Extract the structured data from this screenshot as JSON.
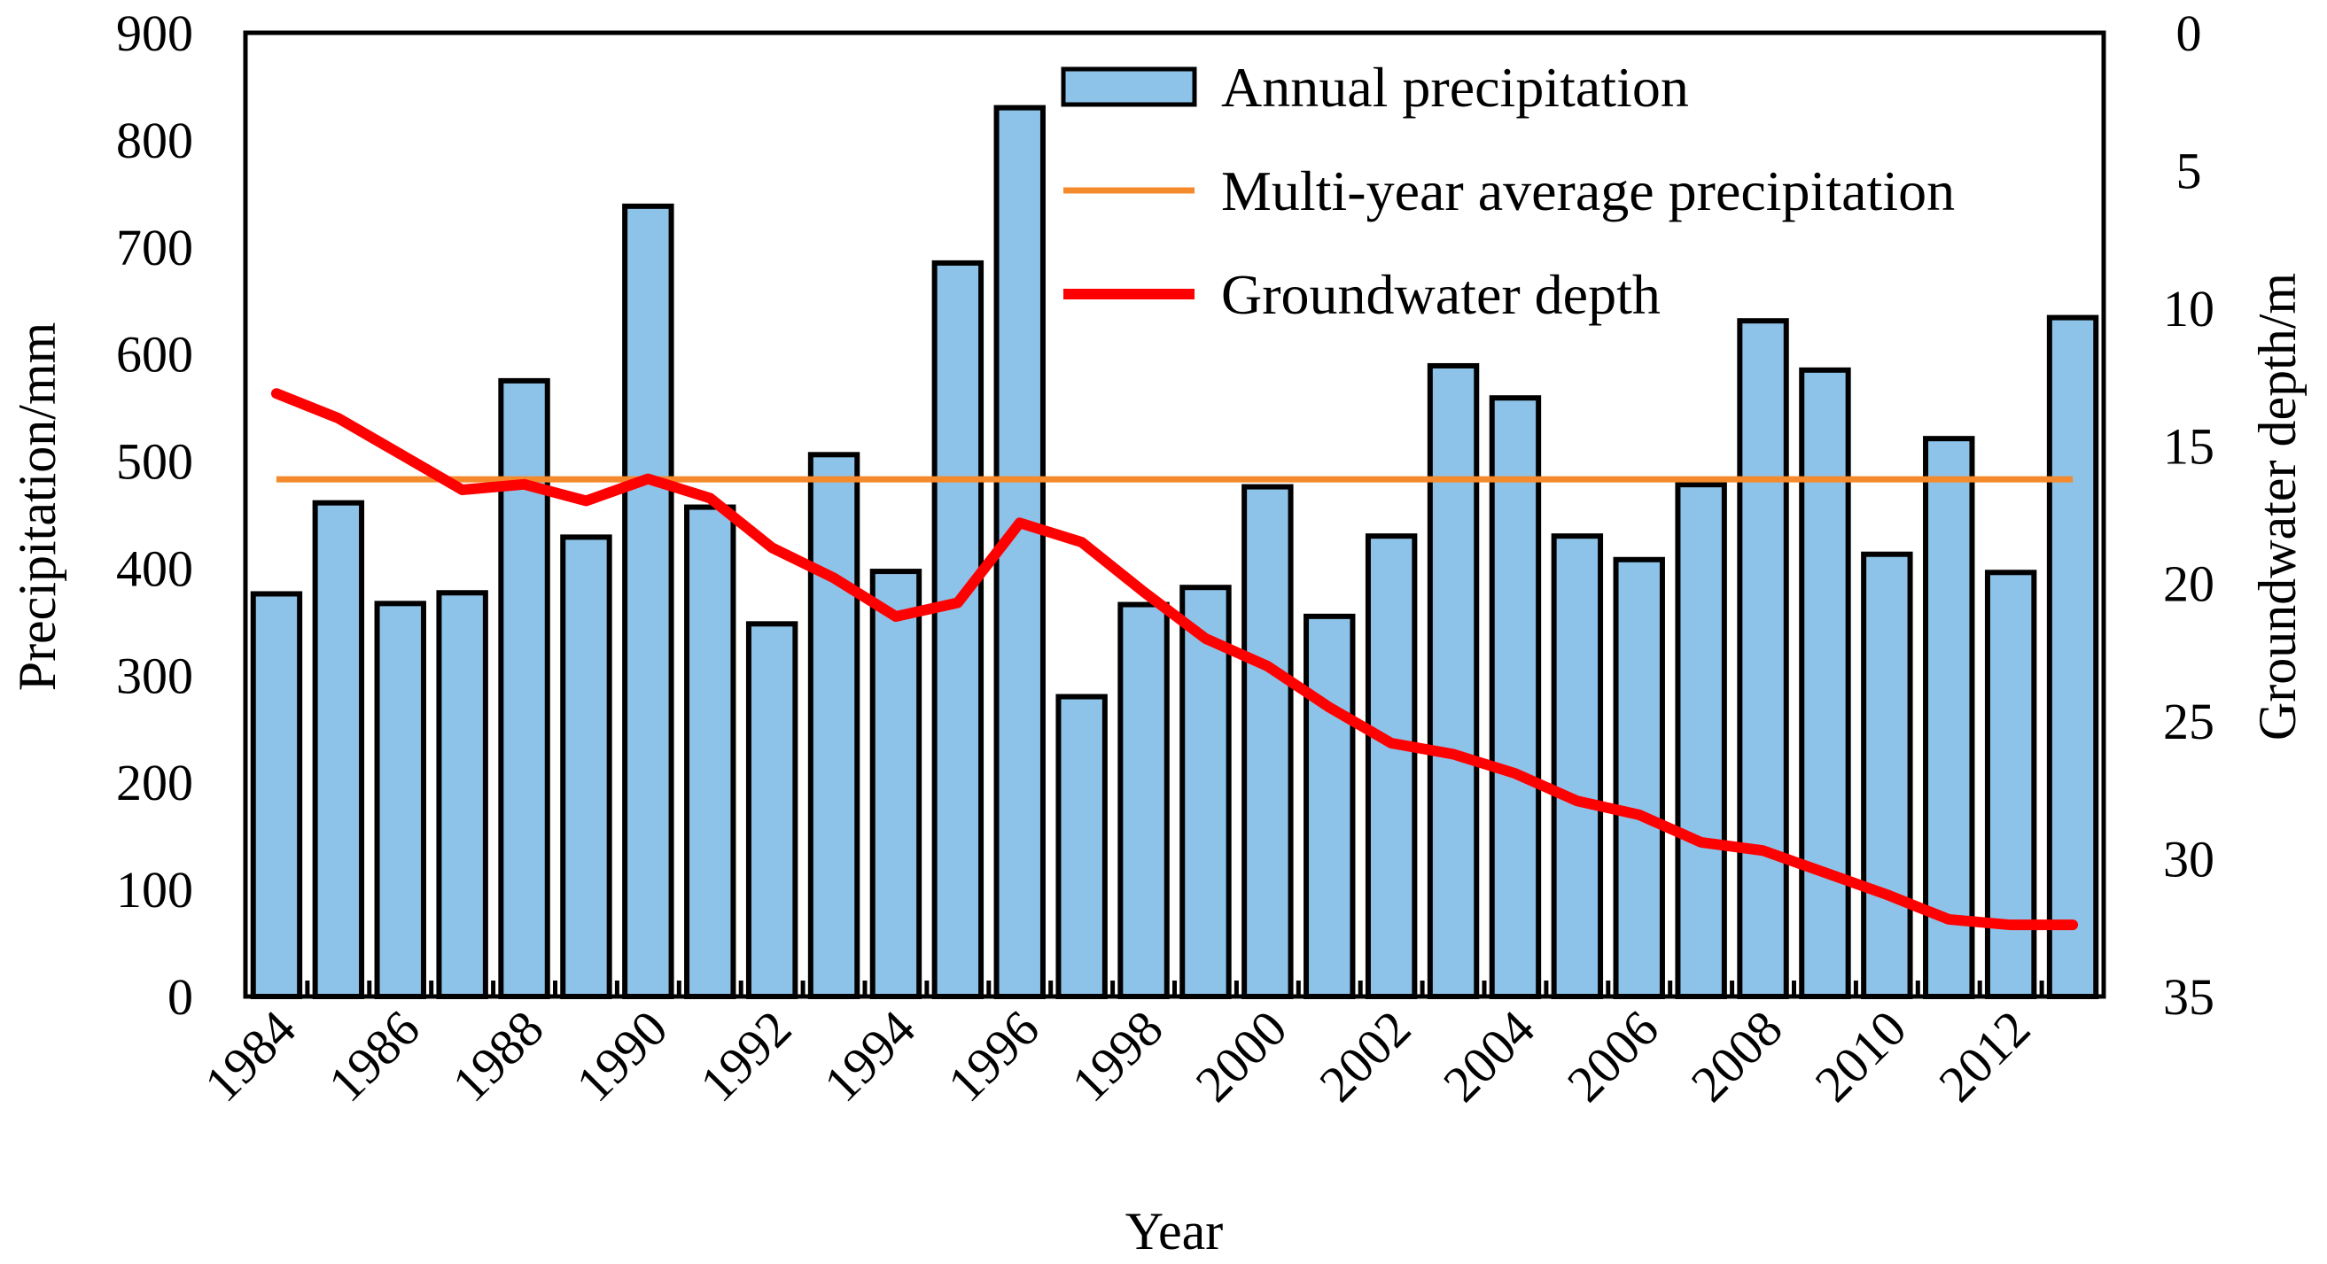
{
  "chart_data": {
    "type": "bar",
    "title": "",
    "xlabel": "Year",
    "ylabel": "Precipitation/mm",
    "y2label": "Groundwater depth/m",
    "ylim": [
      0,
      900
    ],
    "yticks": [
      0,
      100,
      200,
      300,
      400,
      500,
      600,
      700,
      800,
      900
    ],
    "y2lim": [
      0,
      35
    ],
    "y2_inverted": true,
    "y2ticks": [
      0,
      5,
      10,
      15,
      20,
      25,
      30,
      35
    ],
    "categories": [
      1984,
      1985,
      1986,
      1987,
      1988,
      1989,
      1990,
      1991,
      1992,
      1993,
      1994,
      1995,
      1996,
      1997,
      1998,
      1999,
      2000,
      2001,
      2002,
      2003,
      2004,
      2005,
      2006,
      2007,
      2008,
      2009,
      2010,
      2011,
      2012,
      2013
    ],
    "xtick_labels": [
      "1984",
      "1986",
      "1988",
      "1990",
      "1992",
      "1994",
      "1996",
      "1998",
      "2000",
      "2002",
      "2004",
      "2006",
      "2008",
      "2010",
      "2012"
    ],
    "legend_position": "top-center",
    "series": [
      {
        "name": "Annual precipitation",
        "kind": "bar",
        "axis": "left",
        "color": "#8dc3e8",
        "values": [
          376,
          461,
          367,
          377,
          575,
          429,
          738,
          457,
          348,
          506,
          397,
          685,
          830,
          280,
          366,
          382,
          476,
          355,
          430,
          589,
          559,
          430,
          408,
          478,
          631,
          585,
          413,
          521,
          396,
          634
        ]
      },
      {
        "name": "Multi-year average precipitation",
        "kind": "hline",
        "axis": "left",
        "color": "#f48a2c",
        "value": 483
      },
      {
        "name": "Groundwater depth",
        "kind": "line",
        "axis": "right",
        "color": "#ff0000",
        "values": [
          13.1,
          14.0,
          15.3,
          16.6,
          16.4,
          17.0,
          16.2,
          16.9,
          18.7,
          19.8,
          21.2,
          20.7,
          17.8,
          18.5,
          20.3,
          22.0,
          23.0,
          24.5,
          25.8,
          26.2,
          26.9,
          27.9,
          28.4,
          29.4,
          29.7,
          30.5,
          31.3,
          32.2,
          32.4,
          32.4
        ]
      }
    ]
  }
}
